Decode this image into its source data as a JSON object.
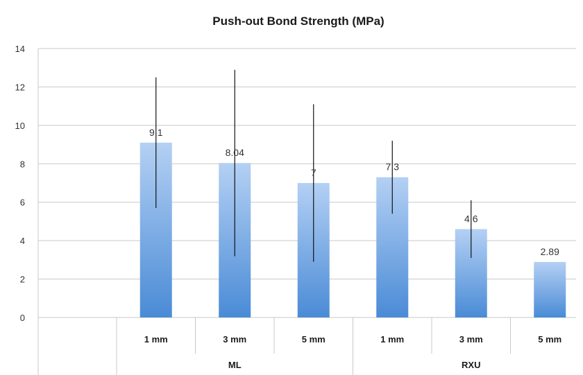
{
  "chart_data": {
    "type": "bar",
    "title": "Push-out Bond Strength (MPa)",
    "xlabel": "",
    "ylabel": "",
    "ylim": [
      0,
      14
    ],
    "yticks": [
      0,
      2,
      4,
      6,
      8,
      10,
      12,
      14
    ],
    "grid": true,
    "legend": "none",
    "categories": [
      "1 mm",
      "3 mm",
      "5 mm",
      "1 mm",
      "3 mm",
      "5 mm"
    ],
    "groups": [
      {
        "label": "ML",
        "start": 0,
        "count": 3
      },
      {
        "label": "RXU",
        "start": 3,
        "count": 3
      }
    ],
    "values": [
      9.1,
      8.04,
      7,
      7.3,
      4.6,
      2.89
    ],
    "data_labels": [
      "9.1",
      "8.04",
      "7",
      "7.3",
      "4.6",
      "2.89"
    ],
    "error_bars": [
      3.4,
      4.85,
      4.1,
      1.9,
      1.5,
      0
    ],
    "colors": {
      "bar_top": "#b4d0f4",
      "bar_bottom": "#4a8bd6",
      "grid": "#c8c8c8",
      "error": "#111111"
    }
  }
}
